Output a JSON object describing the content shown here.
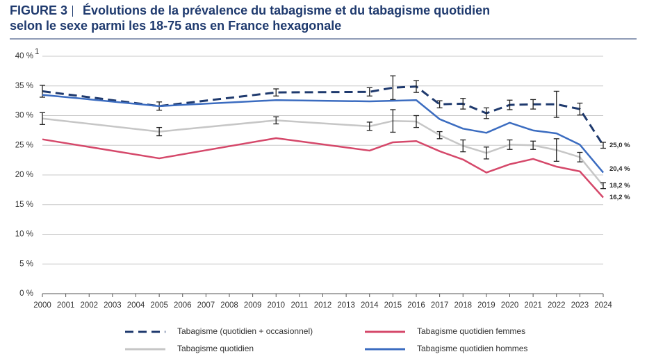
{
  "chart_data": {
    "type": "line",
    "figure_label": "FIGURE 3",
    "title": "Évolutions de la prévalence du tabagisme et du tabagisme quotidien selon le sexe parmi les 18-75 ans en France hexagonale",
    "y_footnote_mark": "1",
    "x": [
      2000,
      2005,
      2010,
      2014,
      2015,
      2016,
      2017,
      2018,
      2019,
      2020,
      2021,
      2022,
      2023,
      2024
    ],
    "xlim": [
      2000,
      2024
    ],
    "xticks": [
      2000,
      2001,
      2002,
      2003,
      2004,
      2005,
      2006,
      2007,
      2008,
      2009,
      2010,
      2011,
      2012,
      2013,
      2014,
      2015,
      2016,
      2017,
      2018,
      2019,
      2020,
      2021,
      2022,
      2023,
      2024
    ],
    "ylim": [
      0,
      40
    ],
    "yticks": [
      {
        "value": 0,
        "label": "0 %"
      },
      {
        "value": 5,
        "label": "5 %"
      },
      {
        "value": 10,
        "label": "10 %"
      },
      {
        "value": 15,
        "label": "15 %"
      },
      {
        "value": 20,
        "label": "20 %"
      },
      {
        "value": 25,
        "label": "25 %"
      },
      {
        "value": 30,
        "label": "30 %"
      },
      {
        "value": 35,
        "label": "35 %"
      },
      {
        "value": 40,
        "label": "40 %"
      }
    ],
    "grid": true,
    "series": [
      {
        "name": "Tabagisme (quotidien + occasionnel)",
        "color": "#1f3a6e",
        "dashed": true,
        "values": [
          34.1,
          31.6,
          33.9,
          34.0,
          34.7,
          34.9,
          31.9,
          32.0,
          30.4,
          31.8,
          31.9,
          31.9,
          31.1,
          25.0
        ],
        "errors": [
          1.0,
          0.7,
          0.6,
          0.7,
          2.0,
          1.0,
          0.6,
          0.9,
          0.9,
          0.8,
          0.8,
          2.2,
          1.0,
          0.5
        ],
        "end_label": "25,0 %"
      },
      {
        "name": "Tabagisme quotidien",
        "color": "#c6c6c6",
        "dashed": false,
        "values": [
          29.5,
          27.3,
          29.2,
          28.2,
          29.1,
          29.0,
          26.7,
          24.9,
          23.7,
          25.1,
          25.0,
          24.2,
          23.0,
          18.2
        ],
        "errors": [
          1.0,
          0.7,
          0.6,
          0.7,
          1.9,
          1.0,
          0.6,
          1.0,
          1.0,
          0.8,
          0.7,
          1.9,
          0.8,
          0.5
        ],
        "end_label": "18,2 %"
      },
      {
        "name": "Tabagisme quotidien hommes",
        "color": "#3b6cc0",
        "dashed": false,
        "values": [
          33.5,
          31.6,
          32.6,
          32.4,
          32.5,
          32.6,
          29.4,
          27.8,
          27.1,
          28.8,
          27.5,
          27.0,
          25.1,
          20.4
        ],
        "end_label": "20,4 %"
      },
      {
        "name": "Tabagisme quotidien femmes",
        "color": "#d5486a",
        "dashed": false,
        "values": [
          26.0,
          22.8,
          26.2,
          24.1,
          25.5,
          25.7,
          24.0,
          22.6,
          20.4,
          21.8,
          22.7,
          21.4,
          20.6,
          16.2
        ],
        "end_label": "16,2 %"
      }
    ]
  }
}
